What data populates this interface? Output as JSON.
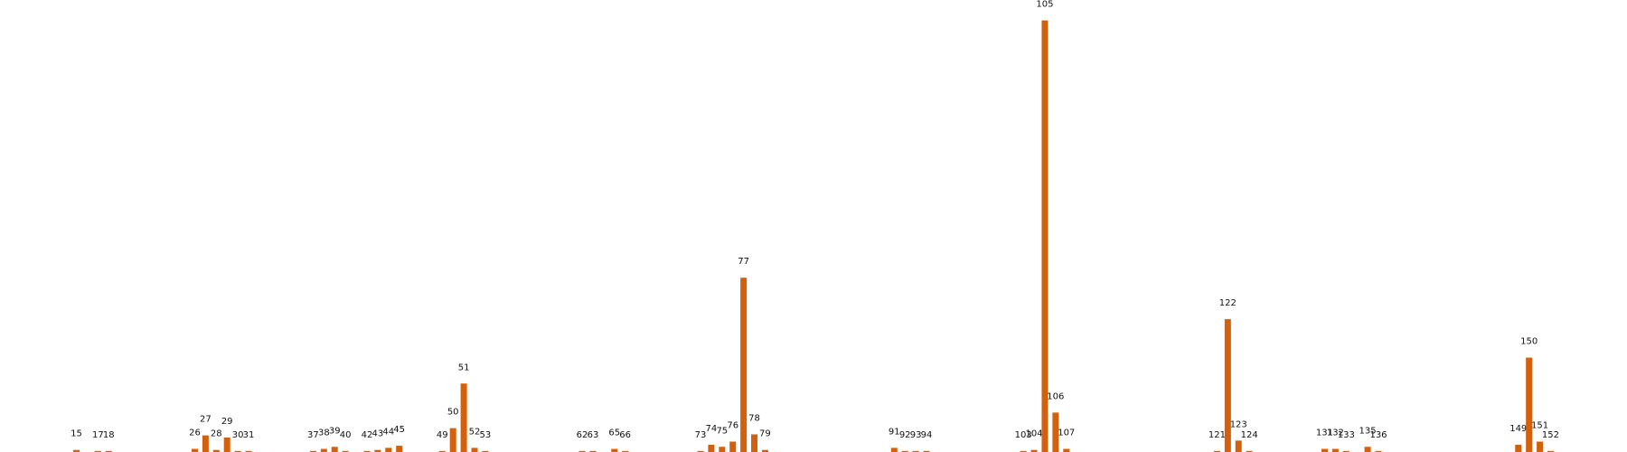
{
  "chart_data": {
    "type": "bar",
    "color": "#d2600c",
    "x": [
      15,
      17,
      18,
      26,
      27,
      28,
      29,
      30,
      31,
      37,
      38,
      39,
      40,
      42,
      43,
      44,
      45,
      49,
      50,
      51,
      52,
      53,
      62,
      63,
      65,
      66,
      73,
      74,
      75,
      76,
      77,
      78,
      79,
      91,
      92,
      93,
      94,
      103,
      104,
      105,
      106,
      107,
      121,
      122,
      123,
      124,
      131,
      132,
      133,
      135,
      136,
      149,
      150,
      151,
      152
    ],
    "values": [
      2,
      1,
      1,
      3,
      16,
      2,
      14,
      1,
      1,
      1,
      3,
      5,
      1,
      1,
      2,
      4,
      6,
      1,
      23,
      66,
      4,
      1,
      1,
      1,
      3,
      1,
      1,
      7,
      5,
      10,
      168,
      17,
      2,
      4,
      1,
      1,
      1,
      1,
      2,
      416,
      38,
      3,
      1,
      128,
      11,
      1,
      3,
      3,
      1,
      5,
      1,
      7,
      91,
      10,
      1
    ],
    "xlim": [
      7.9,
      159.1
    ],
    "ylim": [
      0,
      420
    ]
  }
}
